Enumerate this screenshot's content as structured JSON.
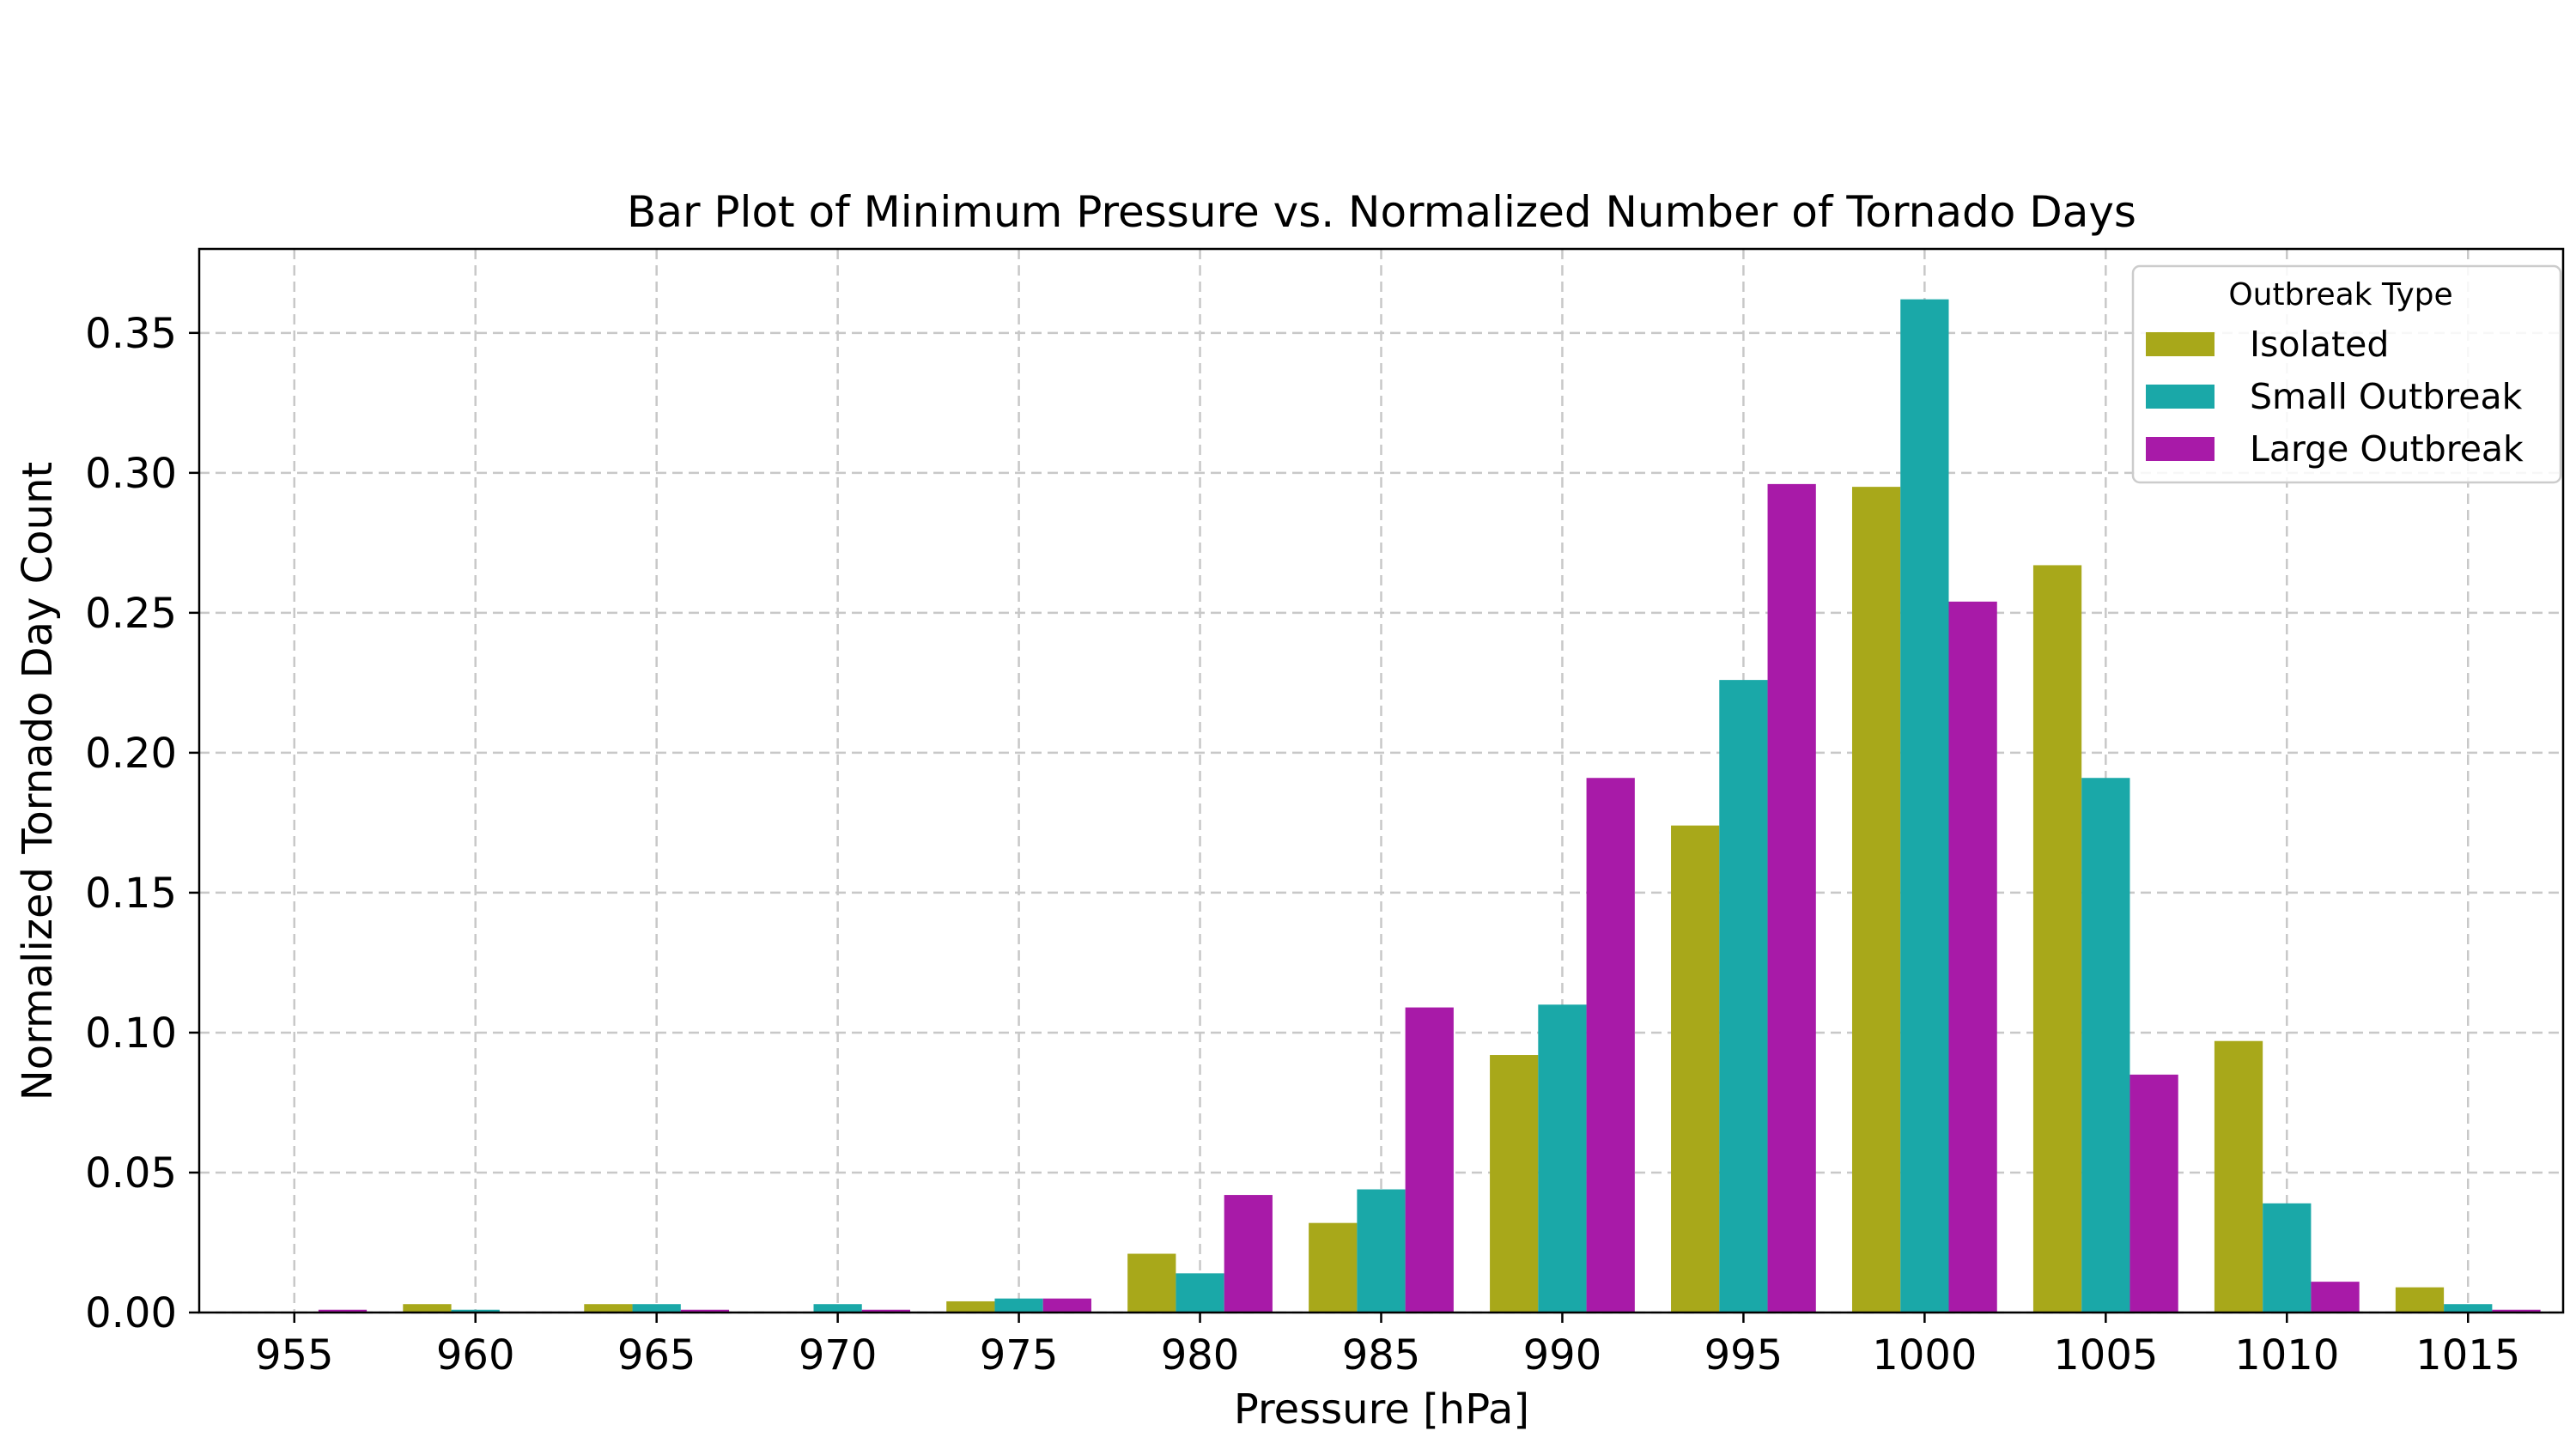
{
  "chart_data": {
    "type": "bar",
    "title": "Bar Plot of Minimum Pressure vs. Normalized Number of Tornado Days",
    "xlabel": "Pressure [hPa]",
    "ylabel": "Normalized Tornado Day Count",
    "categories": [
      "955",
      "960",
      "965",
      "970",
      "975",
      "980",
      "985",
      "990",
      "995",
      "1000",
      "1005",
      "1010",
      "1015"
    ],
    "ylim": [
      0,
      0.38
    ],
    "yticks": [
      0.0,
      0.05,
      0.1,
      0.15,
      0.2,
      0.25,
      0.3,
      0.35
    ],
    "ytick_labels": [
      "0.00",
      "0.05",
      "0.10",
      "0.15",
      "0.20",
      "0.25",
      "0.30",
      "0.35"
    ],
    "grid": true,
    "legend": {
      "title": "Outbreak Type",
      "placement": "top-right"
    },
    "series": [
      {
        "name": "Isolated",
        "color": "#a8a81a",
        "values": [
          0.0,
          0.003,
          0.003,
          0.0,
          0.004,
          0.021,
          0.032,
          0.092,
          0.174,
          0.295,
          0.267,
          0.097,
          0.009
        ]
      },
      {
        "name": "Small Outbreak",
        "color": "#1aa8a8",
        "values": [
          0.0,
          0.001,
          0.003,
          0.003,
          0.005,
          0.014,
          0.044,
          0.11,
          0.226,
          0.362,
          0.191,
          0.039,
          0.003
        ]
      },
      {
        "name": "Large Outbreak",
        "color": "#a81aa8",
        "values": [
          0.001,
          0.0,
          0.001,
          0.001,
          0.005,
          0.042,
          0.109,
          0.191,
          0.296,
          0.254,
          0.085,
          0.011,
          0.001
        ]
      }
    ]
  }
}
